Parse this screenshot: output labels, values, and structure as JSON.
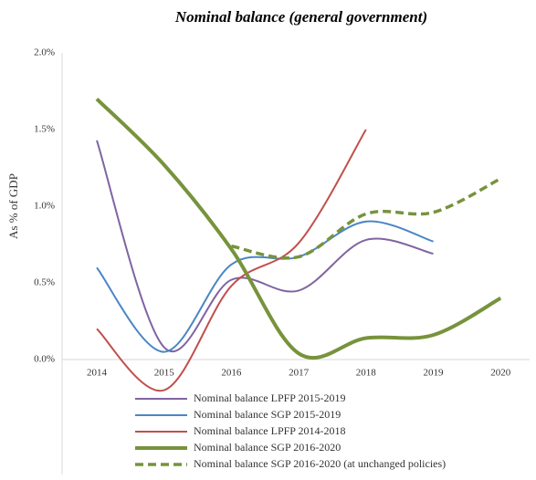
{
  "chart_data": {
    "type": "line",
    "title": "Nominal balance (general government)",
    "y_label": "As % of GDP",
    "categories": [
      "2014",
      "2015",
      "2016",
      "2017",
      "2018",
      "2019",
      "2020"
    ],
    "series": [
      {
        "name": "Nominal balance LPFP 2015-2019",
        "color": "#8064a2",
        "width": 2,
        "dashed": false,
        "values": [
          1.43,
          0.08,
          0.52,
          0.45,
          0.78,
          0.69,
          null
        ]
      },
      {
        "name": "Nominal balance SGP 2015-2019",
        "color": "#4a86c5",
        "width": 2,
        "dashed": false,
        "values": [
          0.6,
          0.05,
          0.62,
          0.67,
          0.9,
          0.77,
          null
        ]
      },
      {
        "name": "Nominal balance LPFP 2014-2018",
        "color": "#c0504d",
        "width": 2,
        "dashed": false,
        "values": [
          0.2,
          -0.2,
          0.48,
          0.76,
          1.5,
          null,
          null
        ]
      },
      {
        "name": "Nominal balance SGP 2016-2020",
        "color": "#77933c",
        "width": 4,
        "dashed": false,
        "values": [
          1.7,
          1.27,
          0.72,
          0.04,
          0.14,
          0.16,
          0.4
        ]
      },
      {
        "name": "Nominal balance SGP 2016-2020 (at unchanged policies)",
        "color": "#77933c",
        "width": 3.5,
        "dashed": true,
        "values": [
          null,
          null,
          0.74,
          0.67,
          0.95,
          0.96,
          1.18
        ]
      }
    ],
    "ylim": [
      -0.25,
      2.0
    ],
    "yticks": [
      {
        "value": 0,
        "label": "0.0%"
      },
      {
        "value": 0.5,
        "label": "0.5%"
      },
      {
        "value": 1.0,
        "label": "1.0%"
      },
      {
        "value": 1.5,
        "label": "1.5%"
      },
      {
        "value": 2.0,
        "label": "2.0%"
      }
    ],
    "grid": false,
    "legend": "bottom"
  }
}
